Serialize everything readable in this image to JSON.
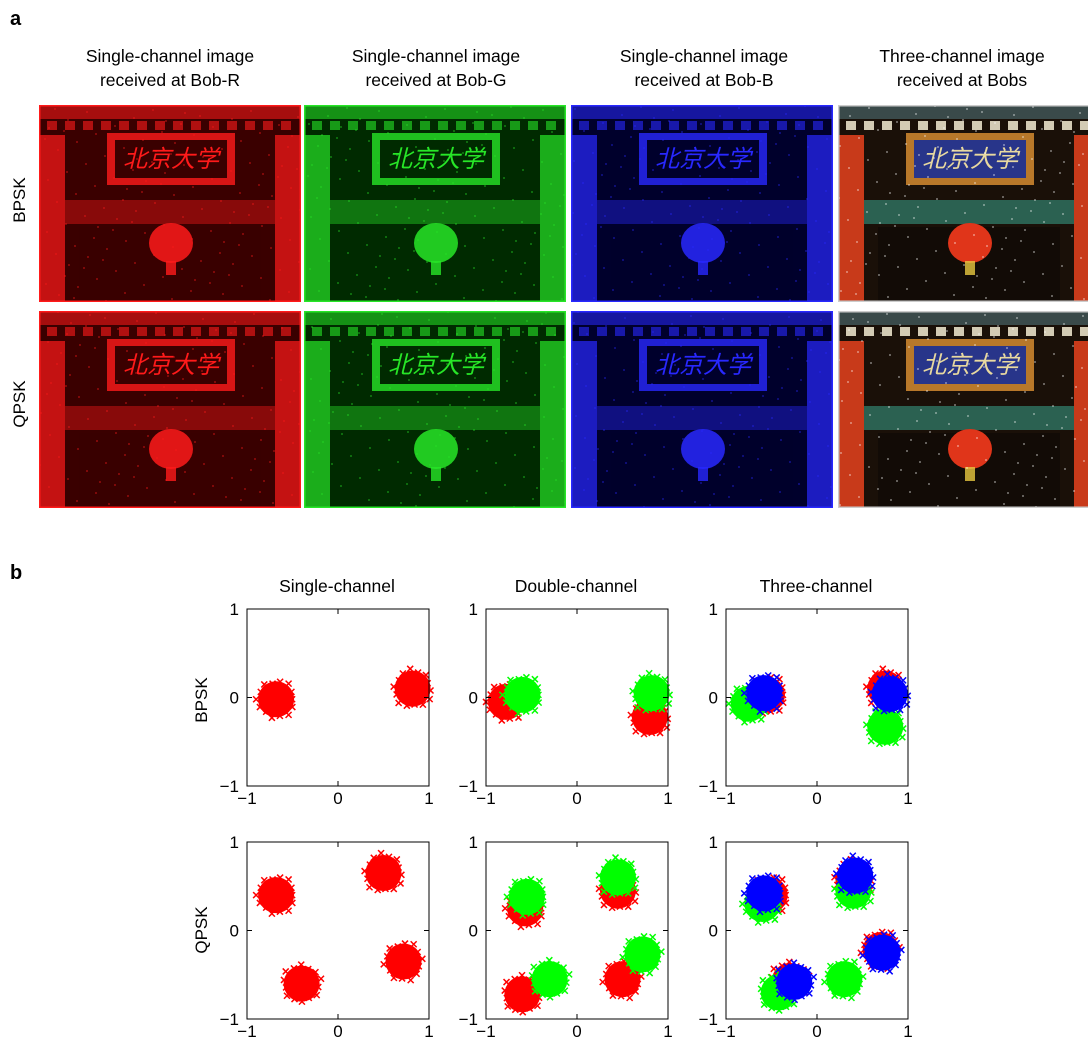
{
  "panels": {
    "a": "a",
    "b": "b"
  },
  "panel_a": {
    "columns": [
      {
        "line1": "Single-channel image",
        "line2": "received at Bob-R",
        "tint": "#ff1a1a",
        "bg": "#3a0000"
      },
      {
        "line1": "Single-channel image",
        "line2": "received at Bob-G",
        "tint": "#27e627",
        "bg": "#002a00"
      },
      {
        "line1": "Single-channel image",
        "line2": "received at Bob-B",
        "tint": "#2828ff",
        "bg": "#00002c"
      },
      {
        "line1": "Three-channel image",
        "line2": "received at Bobs",
        "tint": "color",
        "bg": "#1a1008"
      }
    ],
    "rows": [
      "BPSK",
      "QPSK"
    ],
    "sign_text": "北京大学"
  },
  "panel_b": {
    "columns": [
      "Single-channel",
      "Double-channel",
      "Three-channel"
    ],
    "rows": [
      "BPSK",
      "QPSK"
    ],
    "colors": {
      "red": "#ff0000",
      "green": "#00ff00",
      "blue": "#0000ff"
    }
  },
  "chart_data": [
    {
      "type": "scatter",
      "title": "Single-channel",
      "row": "BPSK",
      "xlim": [
        -1,
        1
      ],
      "ylim": [
        -1,
        1
      ],
      "xticks": [
        "−1",
        "0",
        "1"
      ],
      "yticks": [
        "−1",
        "0",
        "1"
      ],
      "series": [
        {
          "color": "red",
          "points": [
            [
              -0.68,
              -0.02
            ],
            [
              0.82,
              0.1
            ]
          ]
        }
      ]
    },
    {
      "type": "scatter",
      "title": "Double-channel",
      "row": "BPSK",
      "xlim": [
        -1,
        1
      ],
      "ylim": [
        -1,
        1
      ],
      "xticks": [
        "−1",
        "0",
        "1"
      ],
      "yticks": [
        "−1",
        "0",
        "1"
      ],
      "series": [
        {
          "color": "red",
          "points": [
            [
              -0.78,
              -0.05
            ],
            [
              0.8,
              -0.22
            ]
          ]
        },
        {
          "color": "green",
          "points": [
            [
              -0.6,
              0.03
            ],
            [
              0.82,
              0.05
            ]
          ]
        }
      ]
    },
    {
      "type": "scatter",
      "title": "Three-channel",
      "row": "BPSK",
      "xlim": [
        -1,
        1
      ],
      "ylim": [
        -1,
        1
      ],
      "xticks": [
        "−1",
        "0",
        "1"
      ],
      "yticks": [
        "−1",
        "0",
        "1"
      ],
      "series": [
        {
          "color": "red",
          "points": [
            [
              -0.55,
              0.03
            ],
            [
              0.75,
              0.1
            ]
          ]
        },
        {
          "color": "green",
          "points": [
            [
              -0.75,
              -0.07
            ],
            [
              0.75,
              -0.33
            ]
          ]
        },
        {
          "color": "blue",
          "points": [
            [
              -0.58,
              0.05
            ],
            [
              0.8,
              0.04
            ]
          ]
        }
      ]
    },
    {
      "type": "scatter",
      "row": "QPSK",
      "xlim": [
        -1,
        1
      ],
      "ylim": [
        -1,
        1
      ],
      "xticks": [
        "−1",
        "0",
        "1"
      ],
      "yticks": [
        "−1",
        "0",
        "1"
      ],
      "series": [
        {
          "color": "red",
          "points": [
            [
              -0.68,
              0.4
            ],
            [
              0.5,
              0.65
            ],
            [
              -0.4,
              -0.6
            ],
            [
              0.72,
              -0.35
            ]
          ]
        }
      ]
    },
    {
      "type": "scatter",
      "row": "QPSK",
      "xlim": [
        -1,
        1
      ],
      "ylim": [
        -1,
        1
      ],
      "xticks": [
        "−1",
        "0",
        "1"
      ],
      "yticks": [
        "−1",
        "0",
        "1"
      ],
      "series": [
        {
          "color": "red",
          "points": [
            [
              -0.57,
              0.25
            ],
            [
              0.45,
              0.45
            ],
            [
              -0.6,
              -0.72
            ],
            [
              0.5,
              -0.55
            ]
          ]
        },
        {
          "color": "green",
          "points": [
            [
              -0.55,
              0.38
            ],
            [
              0.45,
              0.6
            ],
            [
              -0.3,
              -0.55
            ],
            [
              0.72,
              -0.27
            ]
          ]
        }
      ]
    },
    {
      "type": "scatter",
      "row": "QPSK",
      "xlim": [
        -1,
        1
      ],
      "ylim": [
        -1,
        1
      ],
      "xticks": [
        "−1",
        "0",
        "1"
      ],
      "yticks": [
        "−1",
        "0",
        "1"
      ],
      "series": [
        {
          "color": "red",
          "points": [
            [
              -0.52,
              0.4
            ],
            [
              0.4,
              0.58
            ],
            [
              -0.3,
              -0.57
            ],
            [
              0.7,
              -0.22
            ]
          ]
        },
        {
          "color": "green",
          "points": [
            [
              -0.6,
              0.3
            ],
            [
              0.4,
              0.45
            ],
            [
              -0.42,
              -0.7
            ],
            [
              0.3,
              -0.55
            ]
          ]
        },
        {
          "color": "blue",
          "points": [
            [
              -0.58,
              0.42
            ],
            [
              0.42,
              0.62
            ],
            [
              -0.25,
              -0.58
            ],
            [
              0.72,
              -0.25
            ]
          ]
        }
      ]
    }
  ]
}
